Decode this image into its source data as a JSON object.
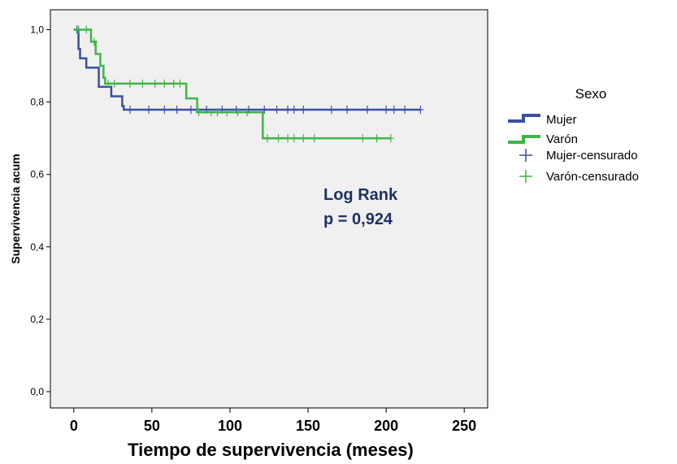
{
  "chart_data": {
    "type": "line",
    "subtype": "kaplan-meier-step",
    "xlabel": "Tiempo de supervivencia (meses)",
    "ylabel": "Supervivencia acum",
    "xlim": [
      -15,
      265
    ],
    "ylim": [
      -0.045,
      1.055
    ],
    "xticks": [
      0,
      50,
      100,
      150,
      200,
      250
    ],
    "xtick_labels": [
      "0",
      "50",
      "100",
      "150",
      "200",
      "250"
    ],
    "yticks": [
      0,
      0.2,
      0.4,
      0.6,
      0.8,
      1.0
    ],
    "ytick_labels": [
      "0,0",
      "0,2",
      "0,4",
      "0,6",
      "0,8",
      "1,0"
    ],
    "grid": false,
    "annotation": {
      "line1": "Log Rank",
      "line2": "p = 0,924",
      "color": "#1f3064"
    },
    "legend": {
      "title": "Sexo",
      "placement": "right",
      "entries": [
        "Mujer",
        "Varón",
        "Mujer-censurado",
        "Varón-censurado"
      ]
    },
    "series": [
      {
        "name": "Mujer",
        "color": "#3a4ea6",
        "steps": [
          [
            0,
            1.0
          ],
          [
            3,
            0.947
          ],
          [
            4,
            0.921
          ],
          [
            8,
            0.895
          ],
          [
            16,
            0.842
          ],
          [
            24,
            0.816
          ],
          [
            31,
            0.789
          ],
          [
            32,
            0.779
          ],
          [
            222,
            0.779
          ]
        ],
        "censored": [
          2,
          36,
          48,
          58,
          66,
          75,
          85,
          95,
          104,
          112,
          122,
          130,
          137,
          141,
          147,
          165,
          175,
          188,
          200,
          205,
          212,
          222
        ],
        "censor_y": [
          1.0,
          0.779,
          0.779,
          0.779,
          0.779,
          0.779,
          0.779,
          0.779,
          0.779,
          0.779,
          0.779,
          0.779,
          0.779,
          0.779,
          0.779,
          0.779,
          0.779,
          0.779,
          0.779,
          0.779,
          0.779,
          0.779
        ]
      },
      {
        "name": "Varón",
        "color": "#3fb449",
        "steps": [
          [
            0,
            1.0
          ],
          [
            11,
            0.967
          ],
          [
            14,
            0.933
          ],
          [
            17,
            0.9
          ],
          [
            19,
            0.867
          ],
          [
            20,
            0.851
          ],
          [
            71,
            0.851
          ],
          [
            72,
            0.81
          ],
          [
            79,
            0.772
          ],
          [
            121,
            0.772
          ],
          [
            121,
            0.7
          ],
          [
            203,
            0.7
          ]
        ],
        "censored": [
          3,
          8,
          13,
          22,
          26,
          36,
          44,
          52,
          58,
          64,
          68,
          80,
          88,
          92,
          98,
          105,
          111,
          124,
          131,
          137,
          141,
          147,
          154,
          185,
          194,
          203
        ],
        "censor_y": [
          1.0,
          1.0,
          0.967,
          0.851,
          0.851,
          0.851,
          0.851,
          0.851,
          0.851,
          0.851,
          0.851,
          0.772,
          0.772,
          0.772,
          0.772,
          0.772,
          0.772,
          0.7,
          0.7,
          0.7,
          0.7,
          0.7,
          0.7,
          0.7,
          0.7,
          0.7
        ]
      }
    ]
  }
}
